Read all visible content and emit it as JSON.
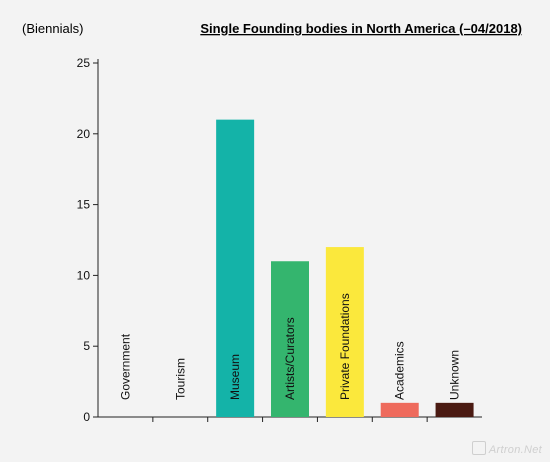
{
  "chart_data": {
    "type": "bar",
    "title": "Single Founding bodies in North America (–04/2018)",
    "ylabel": "(Biennials)",
    "xlabel": "",
    "ylim": [
      0,
      25
    ],
    "yticks": [
      0,
      5,
      10,
      15,
      20,
      25
    ],
    "grid": false,
    "legend": "none",
    "categories": [
      "Government",
      "Tourism",
      "Museum",
      "Artists/Curators",
      "Private Foundations",
      "Academics",
      "Unknown"
    ],
    "values": [
      0,
      0,
      21,
      11,
      12,
      1,
      1
    ],
    "colors": [
      "#ffffff",
      "#ffffff",
      "#14b3a8",
      "#34b56e",
      "#fbe83c",
      "#ee6a5c",
      "#4a1a12"
    ]
  },
  "watermark": "Artron.Net"
}
